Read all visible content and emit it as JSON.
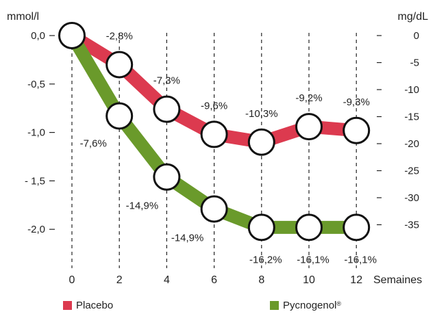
{
  "chart_data": {
    "type": "line",
    "left_axis": {
      "unit": "mmol/l",
      "ticks": [
        "0,0",
        "-0,5",
        "-1,0",
        "- 1,5",
        "-2,0"
      ],
      "values": [
        0,
        -0.5,
        -1.0,
        -1.5,
        -2.0
      ],
      "range": [
        0,
        -2.0
      ]
    },
    "right_axis": {
      "unit": "mg/dL",
      "ticks": [
        "0",
        "-5",
        "-10",
        "-15",
        "-20",
        "-25",
        "-30",
        "-35"
      ],
      "values": [
        0,
        -5,
        -10,
        -15,
        -20,
        -25,
        -30,
        -35
      ]
    },
    "x": [
      0,
      2,
      4,
      6,
      8,
      10,
      12
    ],
    "x_ticks": [
      "0",
      "2",
      "4",
      "6",
      "8",
      "10",
      "12"
    ],
    "xlabel": "Semaines",
    "grid": "vertical dashed",
    "series": [
      {
        "name": "Placebo",
        "color": "#dc3a4f",
        "values": [
          0,
          -0.3,
          -0.76,
          -1.02,
          -1.1,
          -0.94,
          -0.98
        ],
        "labels": [
          "",
          "-2,8%",
          "-7,3%",
          "-9,6%",
          "-10,3%",
          "-9,2%",
          "-9,3%"
        ]
      },
      {
        "name": "Pycnogenol",
        "name_suffix": "®",
        "color": "#6a9a2b",
        "values": [
          0,
          -0.83,
          -1.46,
          -1.79,
          -1.98,
          -1.98,
          -1.98
        ],
        "labels": [
          "",
          "-7,6%",
          "-14,9%",
          "-14,9%",
          "-16,2%",
          "-16,1%",
          "-16,1%"
        ]
      }
    ],
    "legend_placement": "bottom"
  }
}
